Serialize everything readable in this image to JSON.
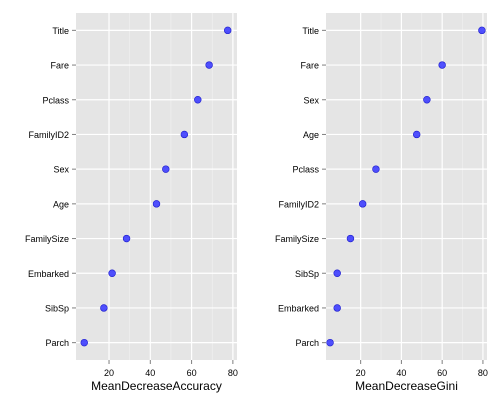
{
  "chart_data": [
    {
      "type": "scatter",
      "title": "",
      "xlabel": "MeanDecreaseAccuracy",
      "ylabel": "",
      "xlim": [
        4,
        82
      ],
      "xticks": [
        20,
        40,
        60,
        80
      ],
      "grid": true,
      "background": "#e5e5e5",
      "point_color": "#3333ff",
      "categories": [
        "Title",
        "Fare",
        "Pclass",
        "FamilyID2",
        "Sex",
        "Age",
        "FamilySize",
        "Embarked",
        "SibSp",
        "Parch"
      ],
      "values": [
        77.5,
        68.5,
        63,
        56.5,
        47.5,
        43,
        28.5,
        21.5,
        17.5,
        8
      ]
    },
    {
      "type": "scatter",
      "title": "",
      "xlabel": "MeanDecreaseGini",
      "ylabel": "",
      "xlim": [
        3,
        82
      ],
      "xticks": [
        20,
        40,
        60,
        80
      ],
      "grid": true,
      "background": "#e5e5e5",
      "point_color": "#3333ff",
      "categories": [
        "Title",
        "Fare",
        "Sex",
        "Age",
        "Pclass",
        "FamilyID2",
        "FamilySize",
        "SibSp",
        "Embarked",
        "Parch"
      ],
      "values": [
        79.5,
        60,
        52.5,
        47.5,
        27.5,
        21,
        15,
        8.5,
        8.5,
        5
      ]
    }
  ]
}
